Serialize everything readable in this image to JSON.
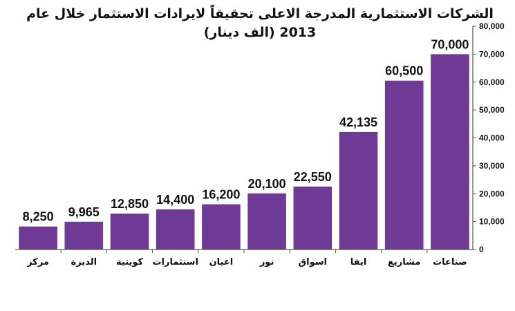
{
  "chart_data": {
    "type": "bar",
    "title_line1": "الشركات الاستثمارية المدرجة الاعلى تحقيقاً لايرادات الاستثمار خلال عام",
    "title_line2": "2013 (الف دينار)",
    "categories": [
      "مركز",
      "الديرة",
      "كويتية",
      "استثمارات",
      "اعيان",
      "نور",
      "اسواق",
      "ايفا",
      "مشاريع",
      "صناعات"
    ],
    "values": [
      8250,
      9965,
      12850,
      14400,
      16200,
      20100,
      22550,
      42135,
      60500,
      70000
    ],
    "data_labels": [
      "8,250",
      "9,965",
      "12,850",
      "14,400",
      "16,200",
      "20,100",
      "22,550",
      "42,135",
      "60,500",
      "70,000"
    ],
    "y_ticks": [
      "0",
      "10,000",
      "20,000",
      "30,000",
      "40,000",
      "50,000",
      "60,000",
      "70,000",
      "80,000"
    ],
    "ylim": [
      0,
      80000
    ],
    "y_axis_side": "right",
    "grid": false,
    "legend": "none",
    "bar_color": "#6F3A95",
    "axis_color": "#555555"
  }
}
